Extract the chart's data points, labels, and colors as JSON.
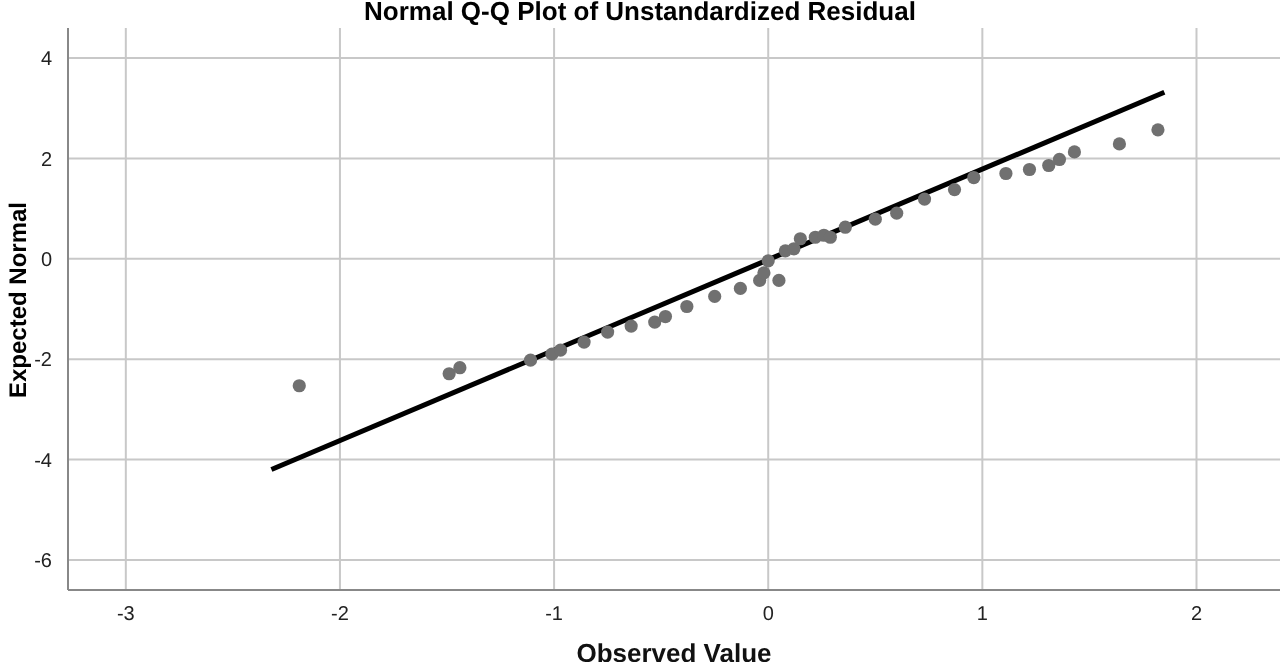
{
  "chart_data": {
    "type": "scatter",
    "title": "Normal Q-Q Plot of Unstandardized Residual",
    "xlabel": "Observed Value",
    "ylabel": "Expected Normal",
    "xlim": [
      -3.27,
      2.39
    ],
    "ylim": [
      -6.6,
      4.6
    ],
    "xticks": [
      -3,
      -2,
      -1,
      0,
      1,
      2
    ],
    "yticks": [
      -6,
      -4,
      -2,
      0,
      2,
      4
    ],
    "grid": true,
    "series": [
      {
        "marker": "circle",
        "color": "#707070",
        "x": [
          -2.19,
          -1.49,
          -1.44,
          -1.11,
          -1.01,
          -0.97,
          -0.86,
          -0.75,
          -0.64,
          -0.53,
          -0.48,
          -0.38,
          -0.25,
          -0.13,
          -0.04,
          -0.02,
          0.0,
          0.05,
          0.08,
          0.12,
          0.15,
          0.22,
          0.26,
          0.29,
          0.36,
          0.5,
          0.6,
          0.73,
          0.87,
          0.96,
          1.11,
          1.22,
          1.31,
          1.36,
          1.43,
          1.64,
          1.82
        ],
        "values": [
          -2.53,
          -2.29,
          -2.17,
          -2.02,
          -1.9,
          -1.82,
          -1.66,
          -1.46,
          -1.34,
          -1.26,
          -1.15,
          -0.95,
          -0.75,
          -0.59,
          -0.43,
          -0.28,
          -0.04,
          -0.43,
          0.16,
          0.2,
          0.4,
          0.43,
          0.47,
          0.43,
          0.63,
          0.79,
          0.91,
          1.19,
          1.38,
          1.62,
          1.7,
          1.78,
          1.86,
          1.98,
          2.13,
          2.29,
          2.57
        ]
      },
      {
        "type": "line",
        "color": "#000000",
        "x": [
          -2.32,
          1.85
        ],
        "values": [
          -4.2,
          3.32
        ]
      }
    ]
  }
}
